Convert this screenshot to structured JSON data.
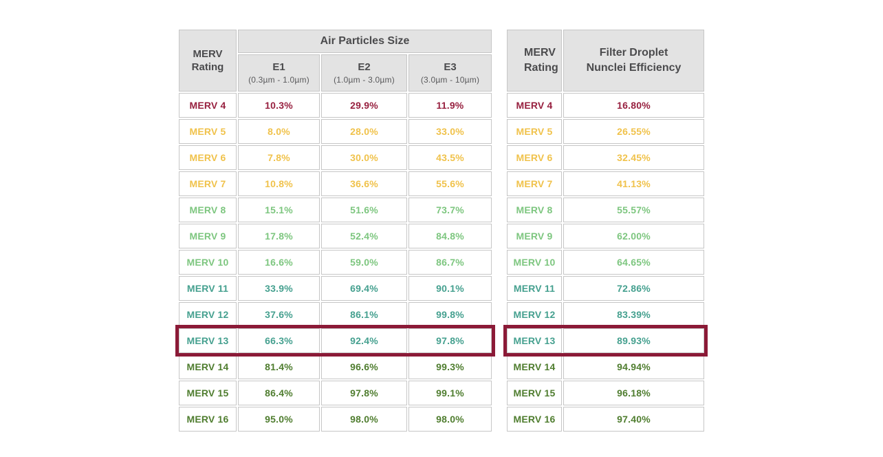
{
  "palette": {
    "maroon": "#97203f",
    "yellow": "#f0c24b",
    "light_green": "#7dc67f",
    "teal": "#45a08f",
    "dark_green": "#4f7d2f",
    "highlight_border": "#8b1a37",
    "header_bg": "#e3e3e3",
    "header_text": "#4b4b4d",
    "cell_border": "#c6c6c6"
  },
  "left_table": {
    "corner_header": "MERV Rating",
    "group_header": "Air Particles Size",
    "columns": [
      {
        "label": "E1",
        "sublabel": "(0.3µm - 1.0µm)"
      },
      {
        "label": "E2",
        "sublabel": "(1.0µm - 3.0µm)"
      },
      {
        "label": "E3",
        "sublabel": "(3.0µm - 10µm)"
      }
    ],
    "rows": [
      {
        "rating": "MERV 4",
        "values": [
          "10.3%",
          "29.9%",
          "11.9%"
        ],
        "tier": "maroon",
        "highlight": false
      },
      {
        "rating": "MERV 5",
        "values": [
          "8.0%",
          "28.0%",
          "33.0%"
        ],
        "tier": "yellow",
        "highlight": false
      },
      {
        "rating": "MERV 6",
        "values": [
          "7.8%",
          "30.0%",
          "43.5%"
        ],
        "tier": "yellow",
        "highlight": false
      },
      {
        "rating": "MERV 7",
        "values": [
          "10.8%",
          "36.6%",
          "55.6%"
        ],
        "tier": "yellow",
        "highlight": false
      },
      {
        "rating": "MERV 8",
        "values": [
          "15.1%",
          "51.6%",
          "73.7%"
        ],
        "tier": "light_green",
        "highlight": false
      },
      {
        "rating": "MERV 9",
        "values": [
          "17.8%",
          "52.4%",
          "84.8%"
        ],
        "tier": "light_green",
        "highlight": false
      },
      {
        "rating": "MERV 10",
        "values": [
          "16.6%",
          "59.0%",
          "86.7%"
        ],
        "tier": "light_green",
        "highlight": false
      },
      {
        "rating": "MERV 11",
        "values": [
          "33.9%",
          "69.4%",
          "90.1%"
        ],
        "tier": "teal",
        "highlight": false
      },
      {
        "rating": "MERV 12",
        "values": [
          "37.6%",
          "86.1%",
          "99.8%"
        ],
        "tier": "teal",
        "highlight": false
      },
      {
        "rating": "MERV 13",
        "values": [
          "66.3%",
          "92.4%",
          "97.8%"
        ],
        "tier": "teal",
        "highlight": true
      },
      {
        "rating": "MERV 14",
        "values": [
          "81.4%",
          "96.6%",
          "99.3%"
        ],
        "tier": "dark_green",
        "highlight": false
      },
      {
        "rating": "MERV 15",
        "values": [
          "86.4%",
          "97.8%",
          "99.1%"
        ],
        "tier": "dark_green",
        "highlight": false
      },
      {
        "rating": "MERV 16",
        "values": [
          "95.0%",
          "98.0%",
          "98.0%"
        ],
        "tier": "dark_green",
        "highlight": false
      }
    ]
  },
  "right_table": {
    "corner_header": "MERV Rating",
    "value_header": "Filter Droplet Nunclei Efficiency",
    "rows": [
      {
        "rating": "MERV 4",
        "value": "16.80%",
        "tier": "maroon",
        "highlight": false
      },
      {
        "rating": "MERV 5",
        "value": "26.55%",
        "tier": "yellow",
        "highlight": false
      },
      {
        "rating": "MERV 6",
        "value": "32.45%",
        "tier": "yellow",
        "highlight": false
      },
      {
        "rating": "MERV 7",
        "value": "41.13%",
        "tier": "yellow",
        "highlight": false
      },
      {
        "rating": "MERV 8",
        "value": "55.57%",
        "tier": "light_green",
        "highlight": false
      },
      {
        "rating": "MERV 9",
        "value": "62.00%",
        "tier": "light_green",
        "highlight": false
      },
      {
        "rating": "MERV 10",
        "value": "64.65%",
        "tier": "light_green",
        "highlight": false
      },
      {
        "rating": "MERV 11",
        "value": "72.86%",
        "tier": "teal",
        "highlight": false
      },
      {
        "rating": "MERV 12",
        "value": "83.39%",
        "tier": "teal",
        "highlight": false
      },
      {
        "rating": "MERV 13",
        "value": "89.93%",
        "tier": "teal",
        "highlight": true
      },
      {
        "rating": "MERV 14",
        "value": "94.94%",
        "tier": "dark_green",
        "highlight": false
      },
      {
        "rating": "MERV 15",
        "value": "96.18%",
        "tier": "dark_green",
        "highlight": false
      },
      {
        "rating": "MERV 16",
        "value": "97.40%",
        "tier": "dark_green",
        "highlight": false
      }
    ]
  },
  "chart_data": [
    {
      "type": "table",
      "title": "Air Particles Size",
      "columns": [
        "MERV Rating",
        "E1 (0.3µm - 1.0µm)",
        "E2 (1.0µm - 3.0µm)",
        "E3 (3.0µm - 10µm)"
      ],
      "rows": [
        [
          "MERV 4",
          10.3,
          29.9,
          11.9
        ],
        [
          "MERV 5",
          8.0,
          28.0,
          33.0
        ],
        [
          "MERV 6",
          7.8,
          30.0,
          43.5
        ],
        [
          "MERV 7",
          10.8,
          36.6,
          55.6
        ],
        [
          "MERV 8",
          15.1,
          51.6,
          73.7
        ],
        [
          "MERV 9",
          17.8,
          52.4,
          84.8
        ],
        [
          "MERV 10",
          16.6,
          59.0,
          86.7
        ],
        [
          "MERV 11",
          33.9,
          69.4,
          90.1
        ],
        [
          "MERV 12",
          37.6,
          86.1,
          99.8
        ],
        [
          "MERV 13",
          66.3,
          92.4,
          97.8
        ],
        [
          "MERV 14",
          81.4,
          96.6,
          99.3
        ],
        [
          "MERV 15",
          86.4,
          97.8,
          99.1
        ],
        [
          "MERV 16",
          95.0,
          98.0,
          98.0
        ]
      ],
      "units": "percent",
      "highlighted_row": "MERV 13"
    },
    {
      "type": "table",
      "title": "Filter Droplet Nunclei Efficiency",
      "columns": [
        "MERV Rating",
        "Filter Droplet Nunclei Efficiency"
      ],
      "rows": [
        [
          "MERV 4",
          16.8
        ],
        [
          "MERV 5",
          26.55
        ],
        [
          "MERV 6",
          32.45
        ],
        [
          "MERV 7",
          41.13
        ],
        [
          "MERV 8",
          55.57
        ],
        [
          "MERV 9",
          62.0
        ],
        [
          "MERV 10",
          64.65
        ],
        [
          "MERV 11",
          72.86
        ],
        [
          "MERV 12",
          83.39
        ],
        [
          "MERV 13",
          89.93
        ],
        [
          "MERV 14",
          94.94
        ],
        [
          "MERV 15",
          96.18
        ],
        [
          "MERV 16",
          97.4
        ]
      ],
      "units": "percent",
      "highlighted_row": "MERV 13"
    }
  ]
}
